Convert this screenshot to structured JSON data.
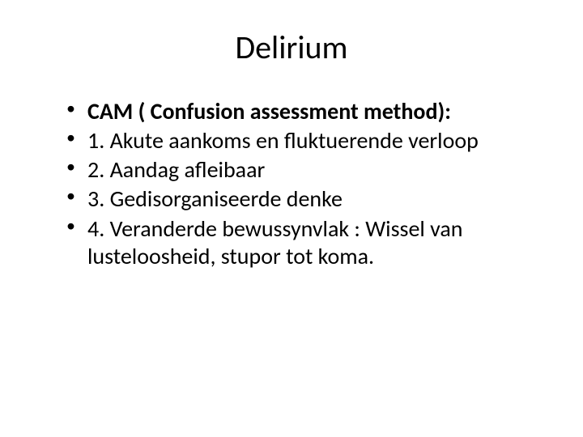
{
  "slide": {
    "title": "Delirium",
    "bullets": [
      {
        "text": "CAM ( Confusion assessment method):",
        "bold": true
      },
      {
        "text": " 1. Akute aankoms en fluktuerende verloop",
        "bold": false
      },
      {
        "text": "2. Aandag afleibaar",
        "bold": false
      },
      {
        "text": "3. Gedisorganiseerde denke",
        "bold": false
      },
      {
        "text": "4. Veranderde bewussynvlak : Wissel van lusteloosheid, stupor tot koma.",
        "bold": false
      }
    ]
  },
  "colors": {
    "background": "#ffffff",
    "text": "#000000"
  },
  "typography": {
    "title_fontsize": 40,
    "bullet_fontsize": 28,
    "font_family": "Calibri"
  }
}
